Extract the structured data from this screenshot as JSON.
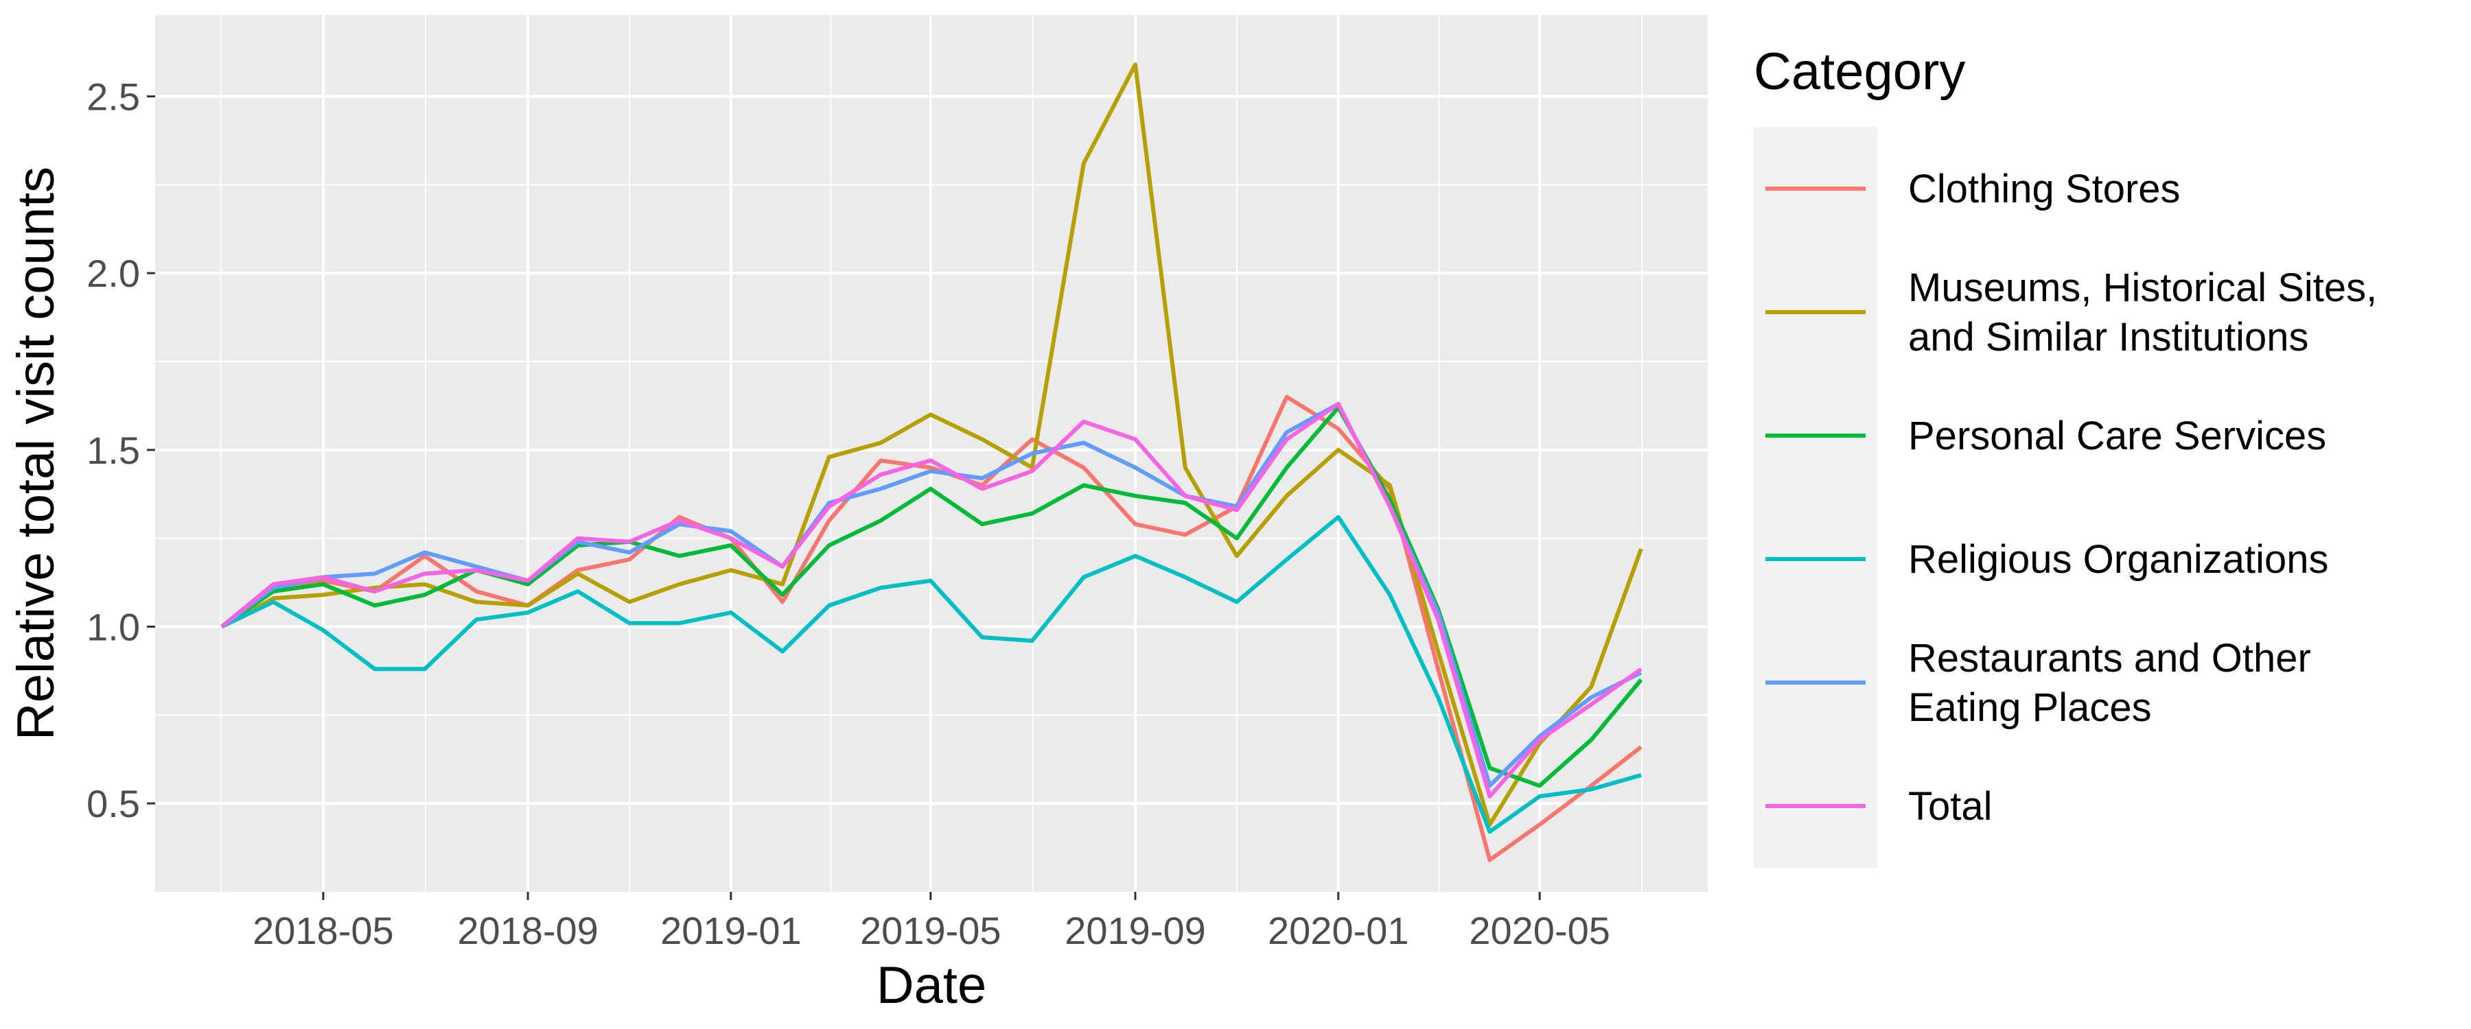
{
  "chart_data": {
    "type": "line",
    "xlabel": "Date",
    "ylabel": "Relative total visit counts",
    "x_ticks": [
      "2018-05",
      "2018-09",
      "2019-01",
      "2019-05",
      "2019-09",
      "2020-01",
      "2020-05"
    ],
    "y_ticks": [
      "0.5",
      "1.0",
      "1.5",
      "2.0",
      "2.5"
    ],
    "xlim": [
      "2018-01-20",
      "2020-08-10"
    ],
    "ylim": [
      0.25,
      2.73
    ],
    "grid": true,
    "legend": {
      "title": "Category",
      "position": "right"
    },
    "x": [
      "2018-03",
      "2018-04",
      "2018-05",
      "2018-06",
      "2018-07",
      "2018-08",
      "2018-09",
      "2018-10",
      "2018-11",
      "2018-12",
      "2019-01",
      "2019-02",
      "2019-03",
      "2019-04",
      "2019-05",
      "2019-06",
      "2019-07",
      "2019-08",
      "2019-09",
      "2019-10",
      "2019-11",
      "2019-12",
      "2020-01",
      "2020-02",
      "2020-03",
      "2020-04",
      "2020-05",
      "2020-06",
      "2020-07"
    ],
    "series": [
      {
        "name": "Clothing Stores",
        "color": "#F8766D",
        "values": [
          1.0,
          1.11,
          1.13,
          1.1,
          1.2,
          1.1,
          1.06,
          1.16,
          1.19,
          1.31,
          1.25,
          1.07,
          1.3,
          1.47,
          1.45,
          1.4,
          1.53,
          1.45,
          1.29,
          1.26,
          1.34,
          1.65,
          1.56,
          1.39,
          0.88,
          0.34,
          0.44,
          0.55,
          0.66
        ]
      },
      {
        "name": "Museums, Historical Sites, and Similar Institutions",
        "color": "#B79F00",
        "values": [
          1.0,
          1.08,
          1.09,
          1.11,
          1.12,
          1.07,
          1.06,
          1.15,
          1.07,
          1.12,
          1.16,
          1.12,
          1.48,
          1.52,
          1.6,
          1.53,
          1.45,
          2.31,
          2.59,
          1.45,
          1.2,
          1.37,
          1.5,
          1.4,
          0.93,
          0.44,
          0.67,
          0.83,
          1.22
        ]
      },
      {
        "name": "Personal Care Services",
        "color": "#00BA38",
        "values": [
          1.0,
          1.1,
          1.12,
          1.06,
          1.09,
          1.16,
          1.12,
          1.23,
          1.24,
          1.2,
          1.23,
          1.09,
          1.23,
          1.3,
          1.39,
          1.29,
          1.32,
          1.4,
          1.37,
          1.35,
          1.25,
          1.45,
          1.62,
          1.36,
          1.05,
          0.6,
          0.55,
          0.68,
          0.85
        ]
      },
      {
        "name": "Religious Organizations",
        "color": "#00BFC4",
        "values": [
          1.0,
          1.07,
          0.99,
          0.88,
          0.88,
          1.02,
          1.04,
          1.1,
          1.01,
          1.01,
          1.04,
          0.93,
          1.06,
          1.11,
          1.13,
          0.97,
          0.96,
          1.14,
          1.2,
          1.14,
          1.07,
          1.19,
          1.31,
          1.09,
          0.8,
          0.42,
          0.52,
          0.54,
          0.58
        ]
      },
      {
        "name": "Restaurants and Other Eating Places",
        "color": "#619CFF",
        "values": [
          1.0,
          1.11,
          1.14,
          1.15,
          1.21,
          1.17,
          1.13,
          1.24,
          1.21,
          1.29,
          1.27,
          1.17,
          1.35,
          1.39,
          1.44,
          1.42,
          1.49,
          1.52,
          1.45,
          1.37,
          1.34,
          1.55,
          1.63,
          1.34,
          1.04,
          0.55,
          0.69,
          0.8,
          0.87
        ]
      },
      {
        "name": "Total",
        "color": "#F564E3",
        "values": [
          1.0,
          1.12,
          1.14,
          1.1,
          1.15,
          1.16,
          1.13,
          1.25,
          1.24,
          1.3,
          1.25,
          1.17,
          1.34,
          1.43,
          1.47,
          1.39,
          1.44,
          1.58,
          1.53,
          1.37,
          1.33,
          1.53,
          1.63,
          1.34,
          1.02,
          0.52,
          0.68,
          0.78,
          0.88
        ]
      }
    ]
  }
}
